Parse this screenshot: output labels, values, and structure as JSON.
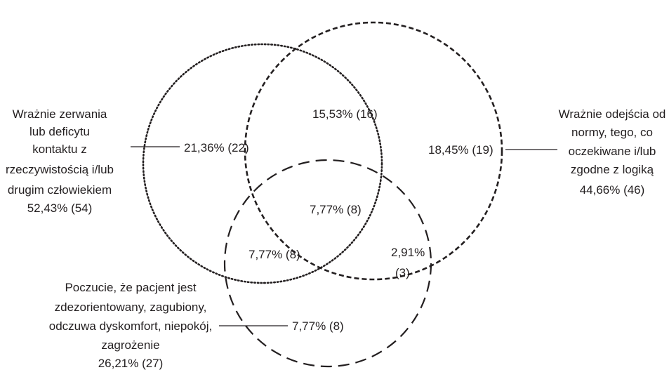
{
  "sets": [
    {
      "key": "A",
      "label_lines": [
        "Wrażnie zerwania",
        "lub deficytu",
        "kontaktu z",
        "rzeczywistością i/lub",
        "drugim człowiekiem",
        "52,43% (54)"
      ]
    },
    {
      "key": "B",
      "label_lines": [
        "Wrażnie odejścia od",
        "normy, tego, co",
        "oczekiwane i/lub",
        "zgodne z logiką",
        "44,66% (46)"
      ]
    },
    {
      "key": "C",
      "label_lines": [
        "Poczucie, że pacjent jest",
        "zdezorientowany, zagubiony,",
        "odczuwa dyskomfort, niepokój,",
        "zagrożenie",
        "26,21% (27)"
      ]
    }
  ],
  "regions": {
    "a_only": "21,36% (22)",
    "ab": "15,53% (16)",
    "b_only": "18,45% (19)",
    "abc": "7,77% (8)",
    "ac": "7,77% (8)",
    "bc_1": "2,91%",
    "bc_2": "(3)",
    "c_only": "7,77% (8)"
  },
  "colors": {
    "stroke": "#231f20",
    "text": "#231f20",
    "background": "#ffffff"
  }
}
